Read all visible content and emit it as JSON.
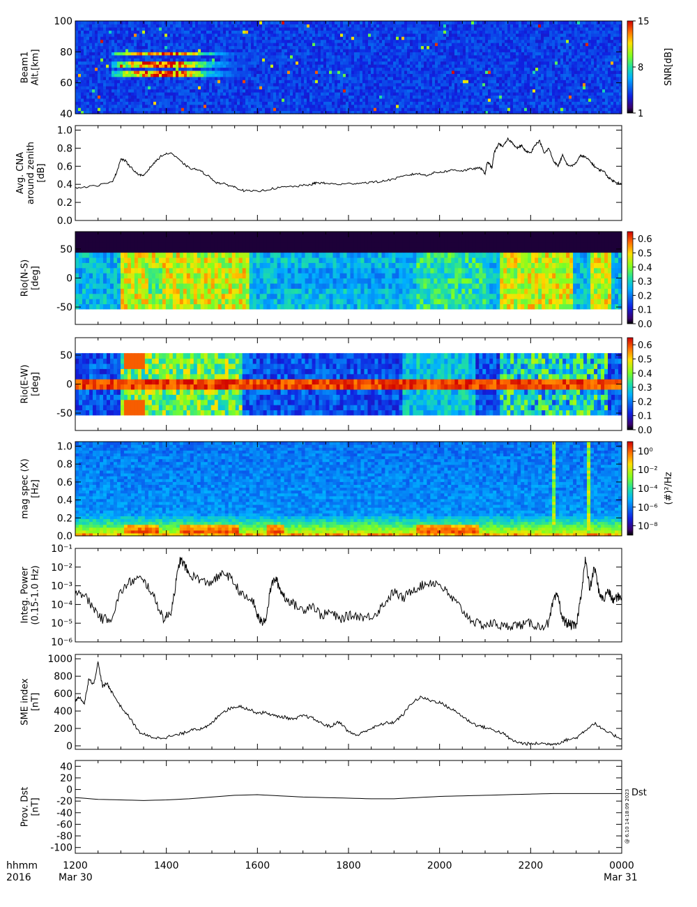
{
  "bottom": {
    "hhmm_label": "hhmm",
    "year_label": "2016",
    "x_ticks": [
      "1200",
      "1400",
      "1600",
      "1800",
      "2000",
      "2200",
      "0000"
    ],
    "x_hours": [
      12,
      14,
      16,
      18,
      20,
      22,
      24
    ],
    "start_date": "Mar 30",
    "end_date": "Mar 31"
  },
  "chart_data": [
    {
      "id": "beam1",
      "type": "heatmap",
      "ylabel": [
        "Beam1",
        "Alt.[km]"
      ],
      "y_ticks": [
        "100",
        "80",
        "60",
        "40"
      ],
      "ylim": [
        40,
        100
      ],
      "colorbar": {
        "label": "SNR[dB]",
        "ticks": [
          "15",
          "8",
          "1"
        ],
        "range": [
          1,
          15
        ],
        "scale": "linear"
      },
      "note": "Strong echo layer between 64-80 km from 1300 to 1550 UT; scattered speckle elsewhere."
    },
    {
      "id": "cna",
      "type": "line",
      "ylabel": [
        "Avg. CNA",
        "around zenith",
        "[dB]"
      ],
      "y_ticks": [
        "1.0",
        "0.8",
        "0.6",
        "0.4",
        "0.2",
        "0.0"
      ],
      "ylim": [
        0,
        1.05
      ],
      "x": [
        12.0,
        12.4,
        12.8,
        12.9,
        13.0,
        13.1,
        13.2,
        13.4,
        13.5,
        13.7,
        13.9,
        14.1,
        14.3,
        14.5,
        14.7,
        14.9,
        15.1,
        15.3,
        15.5,
        15.7,
        16.0,
        16.3,
        16.6,
        16.9,
        17.2,
        17.3,
        17.5,
        17.8,
        18.1,
        18.4,
        18.7,
        19.0,
        19.3,
        19.5,
        19.7,
        19.9,
        20.1,
        20.3,
        20.5,
        20.7,
        20.9,
        21.0,
        21.05,
        21.1,
        21.15,
        21.2,
        21.3,
        21.4,
        21.5,
        21.6,
        21.7,
        21.8,
        21.9,
        22.0,
        22.1,
        22.2,
        22.3,
        22.4,
        22.5,
        22.6,
        22.65,
        22.7,
        22.8,
        22.9,
        23.0,
        23.1,
        23.2,
        23.3,
        23.4,
        23.5,
        23.6,
        23.7,
        23.8,
        23.9,
        24.0
      ],
      "y": [
        0.36,
        0.38,
        0.42,
        0.52,
        0.68,
        0.66,
        0.6,
        0.5,
        0.5,
        0.62,
        0.72,
        0.75,
        0.66,
        0.58,
        0.56,
        0.5,
        0.42,
        0.4,
        0.37,
        0.33,
        0.32,
        0.35,
        0.37,
        0.38,
        0.4,
        0.42,
        0.41,
        0.4,
        0.41,
        0.42,
        0.43,
        0.46,
        0.5,
        0.52,
        0.5,
        0.53,
        0.54,
        0.56,
        0.55,
        0.57,
        0.58,
        0.52,
        0.65,
        0.62,
        0.58,
        0.75,
        0.85,
        0.82,
        0.9,
        0.86,
        0.8,
        0.83,
        0.76,
        0.75,
        0.84,
        0.88,
        0.74,
        0.8,
        0.66,
        0.6,
        0.66,
        0.72,
        0.62,
        0.6,
        0.64,
        0.72,
        0.7,
        0.66,
        0.6,
        0.56,
        0.55,
        0.48,
        0.44,
        0.42,
        0.4
      ]
    },
    {
      "id": "rio-ns",
      "type": "heatmap",
      "ylabel": [
        "Rio(N-S)",
        "[deg]"
      ],
      "y_ticks": [
        "50",
        "0",
        "-50"
      ],
      "ylim": [
        -80,
        80
      ],
      "colorbar": {
        "label": "",
        "ticks": [
          "0.6",
          "0.5",
          "0.4",
          "0.3",
          "0.2",
          "0.1",
          "0.0"
        ],
        "range": [
          0,
          0.65
        ],
        "scale": "linear"
      }
    },
    {
      "id": "rio-ew",
      "type": "heatmap",
      "ylabel": [
        "Rio(E-W)",
        "[deg]"
      ],
      "y_ticks": [
        "50",
        "0",
        "-50"
      ],
      "ylim": [
        -80,
        80
      ],
      "colorbar": {
        "label": "",
        "ticks": [
          "0.6",
          "0.5",
          "0.4",
          "0.3",
          "0.2",
          "0.1",
          "0.0"
        ],
        "range": [
          0,
          0.65
        ],
        "scale": "linear"
      }
    },
    {
      "id": "mag-spec",
      "type": "heatmap",
      "ylabel": [
        "mag spec (X)",
        "[Hz]"
      ],
      "y_ticks": [
        "1.0",
        "0.8",
        "0.6",
        "0.4",
        "0.2",
        "0.0"
      ],
      "ylim": [
        0,
        1.05
      ],
      "colorbar": {
        "label": "(#)²/Hz",
        "ticks": [
          "10⁰",
          "10⁻²",
          "10⁻⁴",
          "10⁻⁶",
          "10⁻⁸"
        ],
        "range": [
          -9,
          1
        ],
        "scale": "log"
      }
    },
    {
      "id": "integ-power",
      "type": "line",
      "ylabel": [
        "Integ. Power",
        "(0.15-1.0 Hz)"
      ],
      "y_ticks": [
        "10⁻¹",
        "10⁻²",
        "10⁻³",
        "10⁻⁴",
        "10⁻⁵",
        "10⁻⁶"
      ],
      "ylim_log10": [
        -6,
        -1
      ],
      "yscale": "log",
      "x": [
        12.0,
        12.2,
        12.4,
        12.6,
        12.8,
        13.0,
        13.2,
        13.4,
        13.6,
        13.8,
        13.95,
        14.1,
        14.2,
        14.3,
        14.4,
        14.5,
        14.7,
        14.9,
        15.1,
        15.3,
        15.5,
        15.7,
        15.9,
        16.0,
        16.1,
        16.2,
        16.3,
        16.4,
        16.5,
        16.6,
        16.8,
        17.0,
        17.2,
        17.4,
        17.6,
        17.8,
        18.0,
        18.2,
        18.4,
        18.6,
        18.8,
        19.0,
        19.2,
        19.4,
        19.6,
        19.8,
        20.0,
        20.2,
        20.4,
        20.6,
        20.8,
        21.0,
        21.2,
        21.4,
        21.6,
        21.8,
        22.0,
        22.2,
        22.4,
        22.5,
        22.6,
        22.7,
        22.8,
        22.9,
        23.0,
        23.1,
        23.2,
        23.3,
        23.4,
        23.5,
        23.6,
        23.7,
        23.8,
        23.9,
        24.0
      ],
      "y_log10": [
        -3.2,
        -3.5,
        -4.2,
        -4.8,
        -4.7,
        -3.3,
        -2.8,
        -2.6,
        -3.0,
        -4.0,
        -4.8,
        -4.4,
        -3.0,
        -1.6,
        -1.9,
        -2.4,
        -2.6,
        -2.9,
        -2.6,
        -2.3,
        -2.9,
        -3.6,
        -3.8,
        -4.6,
        -5.0,
        -4.6,
        -3.0,
        -2.6,
        -3.2,
        -3.6,
        -4.0,
        -4.3,
        -4.0,
        -4.6,
        -4.4,
        -4.8,
        -4.6,
        -4.6,
        -4.7,
        -4.5,
        -3.9,
        -3.3,
        -3.7,
        -3.2,
        -3.0,
        -2.8,
        -2.9,
        -3.5,
        -4.0,
        -4.6,
        -5.0,
        -5.1,
        -5.0,
        -5.2,
        -5.1,
        -5.1,
        -5.0,
        -5.2,
        -5.0,
        -3.8,
        -3.5,
        -4.8,
        -5.0,
        -5.1,
        -5.2,
        -3.6,
        -1.6,
        -3.2,
        -2.0,
        -3.3,
        -3.8,
        -3.2,
        -3.8,
        -3.6,
        -3.6
      ]
    },
    {
      "id": "sme",
      "type": "line",
      "ylabel": [
        "SME index",
        "[nT]"
      ],
      "y_ticks": [
        "1000",
        "800",
        "600",
        "400",
        "200",
        "0"
      ],
      "ylim": [
        -40,
        1050
      ],
      "x": [
        12.0,
        12.1,
        12.2,
        12.3,
        12.4,
        12.5,
        12.6,
        12.7,
        12.8,
        13.0,
        13.2,
        13.4,
        13.6,
        13.8,
        14.0,
        14.2,
        14.4,
        14.6,
        14.8,
        15.0,
        15.2,
        15.4,
        15.6,
        15.8,
        16.0,
        16.2,
        16.4,
        16.6,
        16.8,
        17.0,
        17.2,
        17.4,
        17.6,
        17.8,
        18.0,
        18.2,
        18.4,
        18.6,
        18.8,
        19.0,
        19.2,
        19.4,
        19.6,
        19.8,
        20.0,
        20.2,
        20.4,
        20.6,
        20.8,
        21.0,
        21.2,
        21.4,
        21.6,
        21.8,
        22.0,
        22.2,
        22.4,
        22.6,
        22.8,
        23.0,
        23.2,
        23.4,
        23.6,
        23.8,
        24.0
      ],
      "y": [
        520,
        560,
        480,
        780,
        700,
        960,
        680,
        720,
        620,
        450,
        320,
        160,
        110,
        90,
        100,
        120,
        150,
        200,
        190,
        260,
        380,
        430,
        460,
        420,
        380,
        380,
        340,
        330,
        300,
        350,
        320,
        260,
        220,
        280,
        160,
        120,
        180,
        220,
        260,
        270,
        360,
        500,
        560,
        520,
        500,
        440,
        380,
        300,
        240,
        210,
        180,
        140,
        60,
        30,
        20,
        30,
        20,
        30,
        70,
        90,
        180,
        260,
        180,
        130,
        80
      ]
    },
    {
      "id": "dst",
      "type": "line",
      "ylabel": [
        "Prov. Dst",
        "[nT]"
      ],
      "y_ticks": [
        "40",
        "20",
        "0",
        "-20",
        "-40",
        "-60",
        "-80",
        "-100"
      ],
      "ylim": [
        -110,
        50
      ],
      "series_label": "Dst",
      "x": [
        12.0,
        12.5,
        13.0,
        13.5,
        14.0,
        14.5,
        15.0,
        15.5,
        16.0,
        16.5,
        17.0,
        17.5,
        18.0,
        18.5,
        19.0,
        19.5,
        20.0,
        20.5,
        21.0,
        21.5,
        22.0,
        22.5,
        23.0,
        23.5,
        24.0
      ],
      "y": [
        -14,
        -17,
        -18,
        -19,
        -18,
        -16,
        -13,
        -10,
        -9,
        -11,
        -13,
        -14,
        -15,
        -16,
        -16,
        -14,
        -12,
        -11,
        -10,
        -9,
        -8,
        -7,
        -7,
        -7,
        -7
      ]
    }
  ],
  "credit": "@ 6.10 14:18:09 2023"
}
